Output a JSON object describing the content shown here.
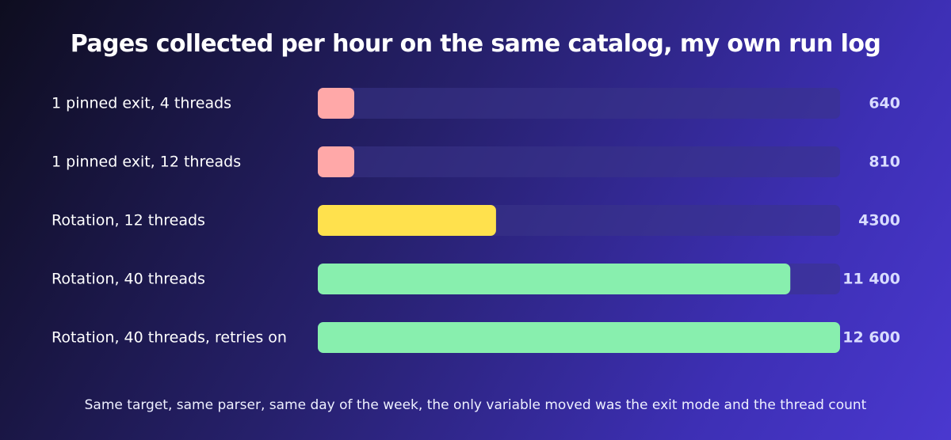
{
  "chart_data": {
    "type": "bar",
    "orientation": "horizontal",
    "title": "Pages collected per hour on the same catalog, my own run log",
    "categories": [
      "1 pinned exit, 4 threads",
      "1 pinned exit, 12 threads",
      "Rotation, 12 threads",
      "Rotation, 40 threads",
      "Rotation, 40 threads, retries on"
    ],
    "values": [
      640,
      810,
      4300,
      11400,
      12600
    ],
    "value_labels": [
      "640",
      "810",
      "4300",
      "11 400",
      "12 600"
    ],
    "xlim": [
      0,
      12600
    ],
    "grid": false,
    "legend": "none",
    "colors": {
      "pinned": "#ffa8a8",
      "rotation_12": "#ffe14d",
      "rotation_40": "#88efae",
      "track": "#3b3489"
    },
    "bar_colors": [
      "#ffa8a8",
      "#ffa8a8",
      "#ffe14d",
      "#88efae",
      "#88efae"
    ]
  },
  "footnote": "Same target, same parser, same day of the week, the only variable moved was the exit mode and the thread count"
}
